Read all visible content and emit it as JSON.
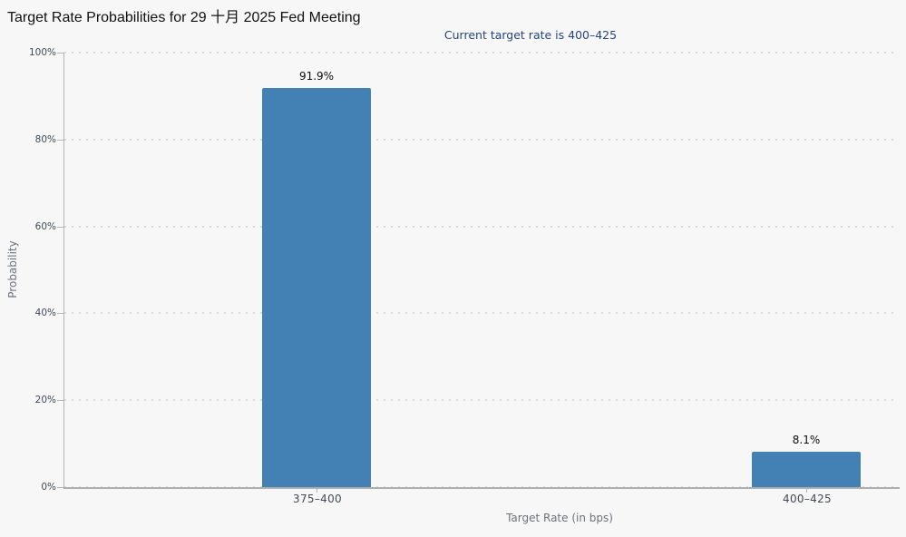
{
  "chart_data": {
    "type": "bar",
    "title": "Target Rate Probabilities for 29 十月 2025 Fed Meeting",
    "subtitle": "Current target rate is 400–425",
    "categories": [
      "375–400",
      "400–425"
    ],
    "values": [
      91.9,
      8.1
    ],
    "value_labels": [
      "91.9%",
      "8.1%"
    ],
    "xlabel": "Target Rate (in bps)",
    "ylabel": "Probability",
    "yticks": [
      "0%",
      "20%",
      "40%",
      "60%",
      "80%",
      "100%"
    ],
    "ylim": [
      0,
      100
    ],
    "grid": "horizontal dotted",
    "legend": "none",
    "colors": {
      "bar": "#4381b5",
      "background": "#f7f7f7",
      "subtitle_text": "#26457c",
      "gridline": "#d9d9d9",
      "tick_text": "#434a54",
      "axis_title_text": "#6d727b"
    }
  }
}
